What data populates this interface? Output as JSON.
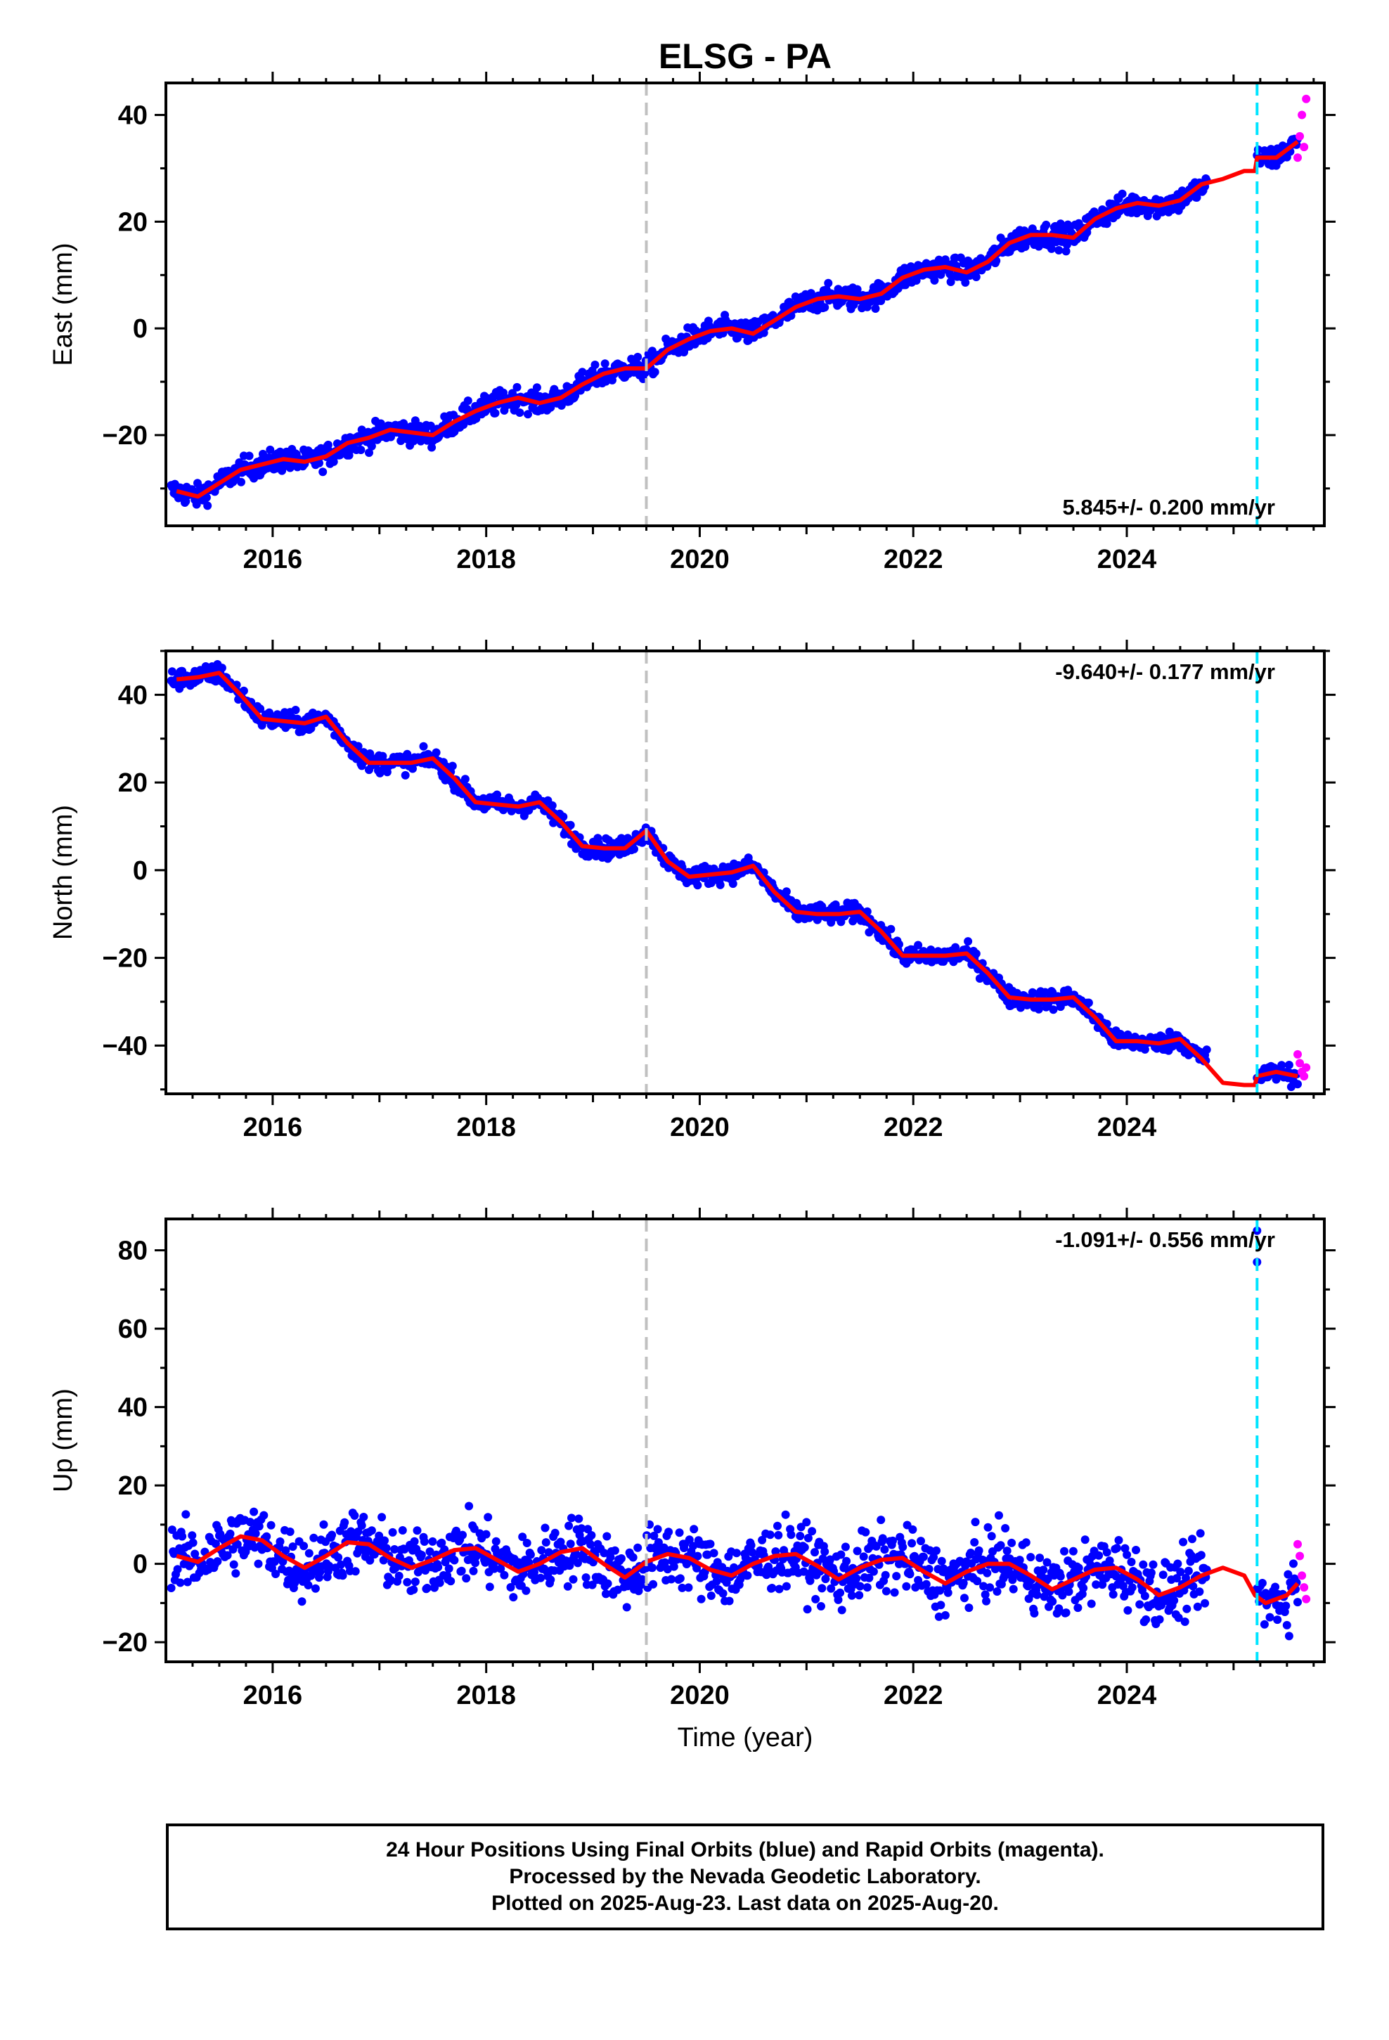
{
  "title": "ELSG - PA",
  "footer": {
    "line1": "24 Hour Positions Using Final Orbits (blue) and Rapid Orbits (magenta).",
    "line2": "Processed by the Nevada Geodetic Laboratory.",
    "line3": "Plotted on 2025-Aug-23. Last data on 2025-Aug-20."
  },
  "colors": {
    "final_orbits": "#0000ff",
    "rapid_orbits": "#ff00ff",
    "model": "#ff0000",
    "event_gray": "#c0c0c0",
    "event_cyan": "#00e5ff"
  },
  "chart_data": [
    {
      "type": "scatter",
      "ylabel": "East (mm)",
      "xlabel": "",
      "xlim": [
        2015.0,
        2025.85
      ],
      "ylim": [
        -37,
        46
      ],
      "xticks": [
        2016,
        2018,
        2020,
        2022,
        2024
      ],
      "yticks": [
        -20,
        0,
        20,
        40
      ],
      "rate": "5.845+/- 0.200 mm/yr",
      "rate_position": "bottom-right",
      "series": [
        {
          "kind": "final",
          "x": [
            2015.1,
            2015.3,
            2015.5,
            2015.7,
            2015.9,
            2016.1,
            2016.3,
            2016.5,
            2016.7,
            2016.9,
            2017.1,
            2017.3,
            2017.5,
            2017.7,
            2017.9,
            2018.1,
            2018.3,
            2018.5,
            2018.7,
            2018.9,
            2019.1,
            2019.3,
            2019.5,
            2019.7,
            2019.9,
            2020.1,
            2020.3,
            2020.5,
            2020.7,
            2020.9,
            2021.1,
            2021.3,
            2021.5,
            2021.7,
            2021.9,
            2022.1,
            2022.3,
            2022.5,
            2022.7,
            2022.9,
            2023.1,
            2023.3,
            2023.5,
            2023.7,
            2023.9,
            2024.1,
            2024.3,
            2024.5,
            2024.7
          ],
          "y": [
            -30.5,
            -31.5,
            -29,
            -26.5,
            -25.5,
            -24.5,
            -25,
            -24,
            -21.5,
            -20.5,
            -19,
            -19.5,
            -20,
            -17.5,
            -15.5,
            -14,
            -13,
            -14,
            -13,
            -10.5,
            -8.5,
            -7.5,
            -7.5,
            -4,
            -2,
            -0.5,
            0,
            -1,
            1.5,
            4,
            5.5,
            6,
            5.5,
            6.5,
            9.5,
            11,
            11.5,
            10.5,
            12.5,
            16,
            17.5,
            17.5,
            17,
            20.5,
            22.5,
            23.5,
            23,
            24,
            26.5
          ]
        },
        {
          "kind": "model",
          "x": [
            2015.1,
            2015.3,
            2015.5,
            2015.7,
            2015.9,
            2016.1,
            2016.3,
            2016.5,
            2016.7,
            2016.9,
            2017.1,
            2017.3,
            2017.5,
            2017.7,
            2017.9,
            2018.1,
            2018.3,
            2018.5,
            2018.7,
            2018.9,
            2019.1,
            2019.3,
            2019.5,
            2019.7,
            2019.9,
            2020.1,
            2020.3,
            2020.5,
            2020.7,
            2020.9,
            2021.1,
            2021.3,
            2021.5,
            2021.7,
            2021.9,
            2022.1,
            2022.3,
            2022.5,
            2022.7,
            2022.9,
            2023.1,
            2023.3,
            2023.5,
            2023.7,
            2023.9,
            2024.1,
            2024.3,
            2024.5,
            2024.7,
            2024.9,
            2025.1,
            2025.2,
            2025.22,
            2025.4,
            2025.6
          ],
          "y": [
            -30.5,
            -31.5,
            -29,
            -26.5,
            -25.5,
            -24.5,
            -25,
            -24,
            -21.5,
            -20.5,
            -19,
            -19.5,
            -20,
            -17.5,
            -15.5,
            -14,
            -13,
            -14,
            -13,
            -10.5,
            -8.5,
            -7.5,
            -7.5,
            -4,
            -2,
            -0.5,
            0,
            -1,
            1.5,
            4,
            5.5,
            6,
            5.5,
            6.5,
            9.5,
            11,
            11.5,
            10.5,
            12.5,
            16,
            17.5,
            17.5,
            17,
            20.5,
            22.5,
            23.5,
            23,
            24,
            27,
            28,
            29.5,
            29.5,
            32,
            32,
            35
          ]
        },
        {
          "kind": "rapid",
          "x": [
            2025.6,
            2025.62,
            2025.64,
            2025.66,
            2025.68
          ],
          "y": [
            32,
            36,
            40,
            34,
            43
          ]
        }
      ]
    },
    {
      "type": "scatter",
      "ylabel": "North (mm)",
      "xlabel": "",
      "xlim": [
        2015.0,
        2025.85
      ],
      "ylim": [
        -51,
        50
      ],
      "xticks": [
        2016,
        2018,
        2020,
        2022,
        2024
      ],
      "yticks": [
        -40,
        -20,
        0,
        20,
        40
      ],
      "rate": "-9.640+/- 0.177 mm/yr",
      "rate_position": "top-right",
      "series": [
        {
          "kind": "final",
          "x": [
            2015.1,
            2015.3,
            2015.5,
            2015.7,
            2015.9,
            2016.1,
            2016.3,
            2016.5,
            2016.7,
            2016.9,
            2017.1,
            2017.3,
            2017.5,
            2017.7,
            2017.9,
            2018.1,
            2018.3,
            2018.5,
            2018.7,
            2018.9,
            2019.1,
            2019.3,
            2019.5,
            2019.7,
            2019.9,
            2020.1,
            2020.3,
            2020.5,
            2020.7,
            2020.9,
            2021.1,
            2021.3,
            2021.5,
            2021.7,
            2021.9,
            2022.1,
            2022.3,
            2022.5,
            2022.7,
            2022.9,
            2023.1,
            2023.3,
            2023.5,
            2023.7,
            2023.9,
            2024.1,
            2024.3,
            2024.5,
            2024.7
          ],
          "y": [
            43.5,
            44,
            45,
            40,
            34.5,
            34,
            33.5,
            35,
            29,
            24.5,
            24.5,
            24.5,
            25.5,
            21,
            15.5,
            15,
            14.5,
            15.5,
            11,
            5.5,
            5,
            5,
            9,
            2,
            -1.5,
            -1,
            -0.5,
            1,
            -5,
            -9.5,
            -10,
            -10,
            -9.5,
            -14,
            -19.5,
            -19.5,
            -19.5,
            -19,
            -23.5,
            -29,
            -29.5,
            -29.5,
            -29,
            -33.5,
            -39,
            -39,
            -39.5,
            -38.5,
            -43
          ]
        },
        {
          "kind": "model",
          "x": [
            2015.1,
            2015.3,
            2015.5,
            2015.7,
            2015.9,
            2016.1,
            2016.3,
            2016.5,
            2016.7,
            2016.9,
            2017.1,
            2017.3,
            2017.5,
            2017.7,
            2017.9,
            2018.1,
            2018.3,
            2018.5,
            2018.7,
            2018.9,
            2019.1,
            2019.3,
            2019.5,
            2019.7,
            2019.9,
            2020.1,
            2020.3,
            2020.5,
            2020.7,
            2020.9,
            2021.1,
            2021.3,
            2021.5,
            2021.7,
            2021.9,
            2022.1,
            2022.3,
            2022.5,
            2022.7,
            2022.9,
            2023.1,
            2023.3,
            2023.5,
            2023.7,
            2023.9,
            2024.1,
            2024.3,
            2024.5,
            2024.7,
            2024.9,
            2025.1,
            2025.2,
            2025.22,
            2025.4,
            2025.6
          ],
          "y": [
            43.5,
            44,
            45,
            40,
            34.5,
            34,
            33.5,
            35,
            29,
            24.5,
            24.5,
            24.5,
            25.5,
            21,
            15.5,
            15,
            14.5,
            15.5,
            11,
            5.5,
            5,
            5,
            9,
            2,
            -1.5,
            -1,
            -0.5,
            1,
            -5,
            -9.5,
            -10,
            -10,
            -9.5,
            -14,
            -19.5,
            -19.5,
            -19.5,
            -19,
            -23.5,
            -29,
            -29.5,
            -29.5,
            -29,
            -33.5,
            -39,
            -39,
            -39.5,
            -38.5,
            -43,
            -48.5,
            -49,
            -49,
            -47,
            -46,
            -47
          ]
        },
        {
          "kind": "rapid",
          "x": [
            2025.6,
            2025.62,
            2025.64,
            2025.66,
            2025.68
          ],
          "y": [
            -42,
            -44,
            -46,
            -47,
            -45
          ]
        }
      ]
    },
    {
      "type": "scatter",
      "ylabel": "Up (mm)",
      "xlabel": "Time (year)",
      "xlim": [
        2015.0,
        2025.85
      ],
      "ylim": [
        -25,
        88
      ],
      "xticks": [
        2016,
        2018,
        2020,
        2022,
        2024
      ],
      "yticks": [
        -20,
        0,
        20,
        40,
        60,
        80
      ],
      "rate": "-1.091+/- 0.556 mm/yr",
      "rate_position": "top-right",
      "series": [
        {
          "kind": "final",
          "x": [
            2015.1,
            2015.3,
            2015.5,
            2015.7,
            2015.9,
            2016.1,
            2016.3,
            2016.5,
            2016.7,
            2016.9,
            2017.1,
            2017.3,
            2017.5,
            2017.7,
            2017.9,
            2018.1,
            2018.3,
            2018.5,
            2018.7,
            2018.9,
            2019.1,
            2019.3,
            2019.5,
            2019.7,
            2019.9,
            2020.1,
            2020.3,
            2020.5,
            2020.7,
            2020.9,
            2021.1,
            2021.3,
            2021.5,
            2021.7,
            2021.9,
            2022.1,
            2022.3,
            2022.5,
            2022.7,
            2022.9,
            2023.1,
            2023.3,
            2023.5,
            2023.7,
            2023.9,
            2024.1,
            2024.3,
            2024.5,
            2024.7
          ],
          "y": [
            2,
            0.5,
            4,
            7,
            6,
            2,
            -1,
            2,
            5.5,
            5,
            1.5,
            -1,
            1,
            3.5,
            4,
            1,
            -2,
            0,
            3,
            4,
            0,
            -3.5,
            0.5,
            2.5,
            1.5,
            -1.5,
            -3,
            0,
            2,
            2.5,
            -0.5,
            -4,
            -1,
            1,
            1.5,
            -2,
            -5,
            -2,
            0,
            0,
            -3,
            -6.5,
            -4,
            -1.5,
            -1,
            -4,
            -8,
            -6,
            -3
          ]
        },
        {
          "kind": "model",
          "x": [
            2015.1,
            2015.3,
            2015.5,
            2015.7,
            2015.9,
            2016.1,
            2016.3,
            2016.5,
            2016.7,
            2016.9,
            2017.1,
            2017.3,
            2017.5,
            2017.7,
            2017.9,
            2018.1,
            2018.3,
            2018.5,
            2018.7,
            2018.9,
            2019.1,
            2019.3,
            2019.5,
            2019.7,
            2019.9,
            2020.1,
            2020.3,
            2020.5,
            2020.7,
            2020.9,
            2021.1,
            2021.3,
            2021.5,
            2021.7,
            2021.9,
            2022.1,
            2022.3,
            2022.5,
            2022.7,
            2022.9,
            2023.1,
            2023.3,
            2023.5,
            2023.7,
            2023.9,
            2024.1,
            2024.3,
            2024.5,
            2024.7,
            2024.9,
            2025.1,
            2025.2,
            2025.3,
            2025.5,
            2025.6
          ],
          "y": [
            2,
            0.5,
            4,
            7,
            6,
            2,
            -1,
            2,
            5.5,
            5,
            1.5,
            -1,
            1,
            3.5,
            4,
            1,
            -2,
            0,
            3,
            4,
            0,
            -3.5,
            0.5,
            2.5,
            1.5,
            -1.5,
            -3,
            0,
            2,
            2.5,
            -0.5,
            -4,
            -1,
            1,
            1.5,
            -2,
            -5,
            -2,
            0,
            0,
            -3,
            -6.5,
            -4,
            -1.5,
            -1,
            -4,
            -8,
            -6,
            -3,
            -1,
            -3,
            -8,
            -10,
            -8,
            -5
          ]
        },
        {
          "kind": "rapid",
          "x": [
            2025.6,
            2025.62,
            2025.64,
            2025.66,
            2025.68
          ],
          "y": [
            5,
            2,
            -3,
            -6,
            -9
          ]
        },
        {
          "kind": "final-outlier",
          "x": [
            2025.22,
            2025.22
          ],
          "y": [
            85,
            77
          ]
        }
      ]
    }
  ],
  "events": [
    {
      "x": 2019.5,
      "color": "gray"
    },
    {
      "x": 2025.22,
      "color": "cyan"
    }
  ]
}
